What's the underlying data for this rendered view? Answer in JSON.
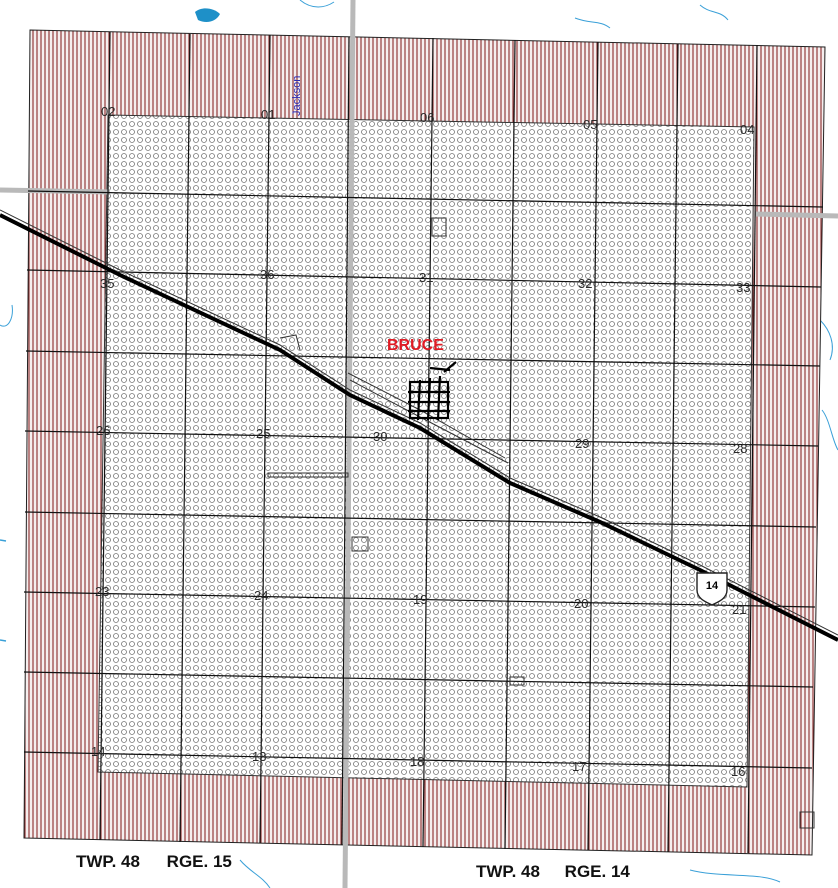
{
  "town": {
    "name": "BRUCE"
  },
  "road_label": "Jackson",
  "highway": {
    "number": "14"
  },
  "township_labels": [
    {
      "twp": "TWP. 48",
      "rge": "RGE. 15"
    },
    {
      "twp": "TWP. 48",
      "rge": "RGE. 14"
    }
  ],
  "sections": {
    "s02": "02",
    "s01": "01",
    "s06": "06",
    "s05": "05",
    "s04": "04",
    "s35": "35",
    "s36": "36",
    "s31": "31",
    "s32": "32",
    "s33": "33",
    "s26": "26",
    "s25": "25",
    "s30": "30",
    "s29": "29",
    "s28": "28",
    "s23": "23",
    "s24": "24",
    "s19": "19",
    "s20": "20",
    "s21": "21",
    "s14": "14",
    "s13": "13",
    "s18": "18",
    "s17": "17",
    "s16": "16"
  },
  "colors": {
    "hatch": "#8b2a2a",
    "dots": "#6b6b6b",
    "water": "#1e90c8",
    "town_label": "#e01b24",
    "grid": "#111111"
  }
}
